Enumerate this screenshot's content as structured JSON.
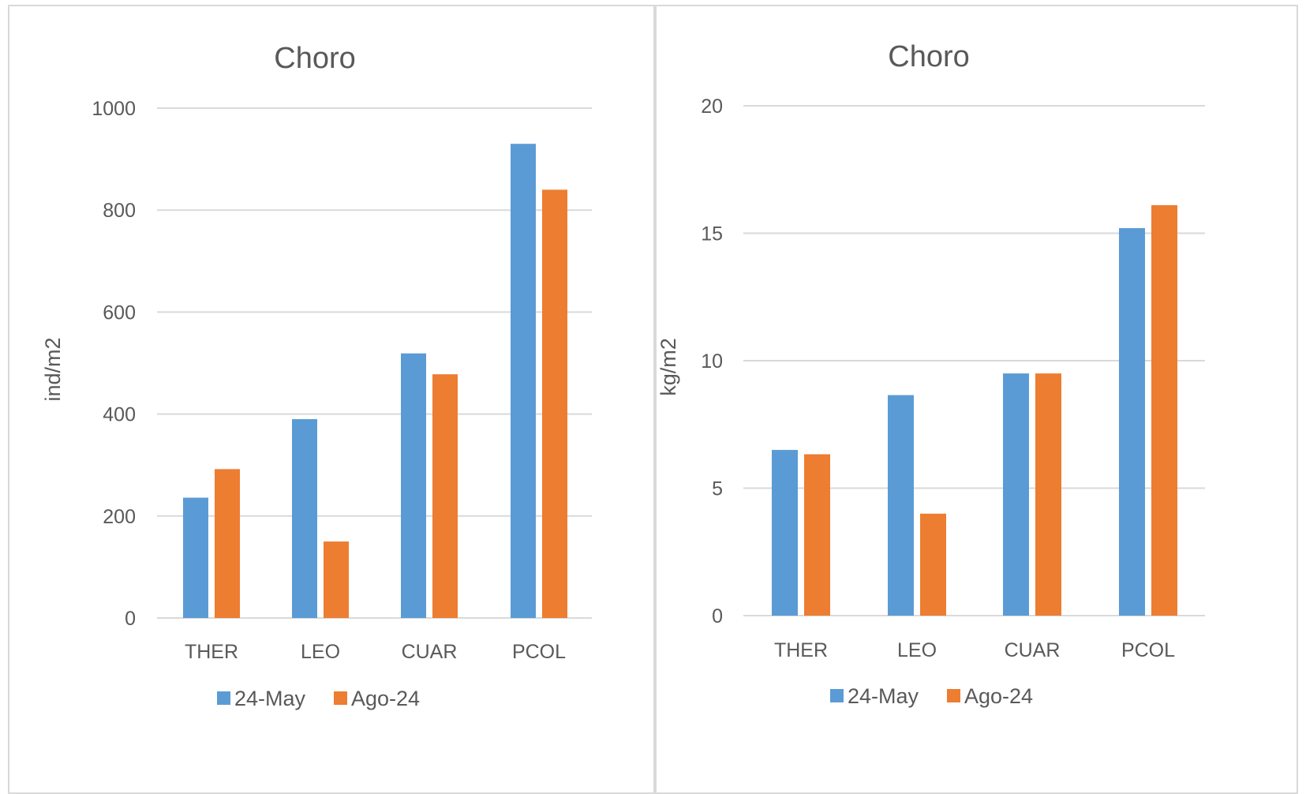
{
  "chart_data": [
    {
      "type": "bar",
      "title": "Choro",
      "xlabel": "",
      "ylabel": "ind/m2",
      "categories": [
        "THER",
        "LEO",
        "CUAR",
        "PCOL"
      ],
      "ylim": [
        0,
        1000
      ],
      "yticks": [
        "0",
        "200",
        "400",
        "600",
        "800",
        "1000"
      ],
      "grid": true,
      "legend_position": "bottom",
      "series": [
        {
          "name": "24-May",
          "color": "#5b9bd5",
          "values": [
            236,
            390,
            519,
            930
          ]
        },
        {
          "name": "Ago-24",
          "color": "#ed7d31",
          "values": [
            292,
            150,
            478,
            840
          ]
        }
      ]
    },
    {
      "type": "bar",
      "title": "Choro",
      "xlabel": "",
      "ylabel": "kg/m2",
      "categories": [
        "THER",
        "LEO",
        "CUAR",
        "PCOL"
      ],
      "ylim": [
        0,
        20
      ],
      "yticks": [
        "0",
        "5",
        "10",
        "15",
        "20"
      ],
      "grid": true,
      "legend_position": "bottom",
      "series": [
        {
          "name": "24-May",
          "color": "#5b9bd5",
          "values": [
            6.5,
            8.65,
            9.5,
            15.2
          ]
        },
        {
          "name": "Ago-24",
          "color": "#ed7d31",
          "values": [
            6.33,
            4.0,
            9.5,
            16.1
          ]
        }
      ]
    }
  ]
}
